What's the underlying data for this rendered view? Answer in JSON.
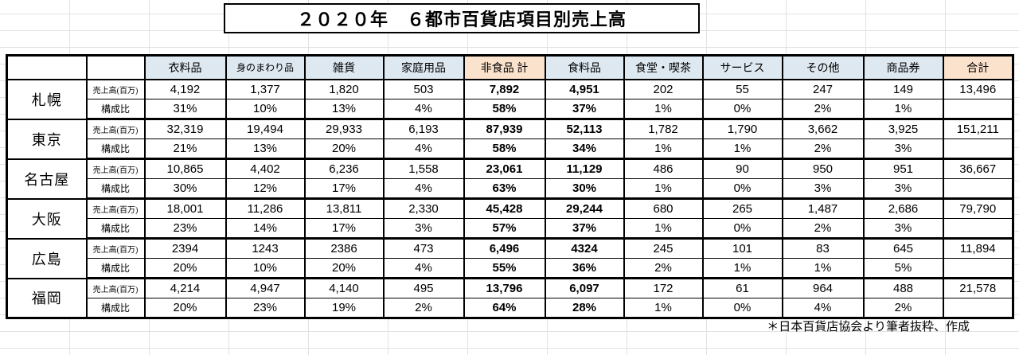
{
  "title": "２０２０年　６都市百貨店項目別売上高",
  "source_note": "＊日本百貨店協会より筆者抜粋、作成",
  "colors": {
    "header_blue": "#dde8f1",
    "header_peach": "#fbe2cd",
    "grid_line": "#e2e2e2",
    "table_border": "#000000"
  },
  "table": {
    "row_labels": {
      "sales": "売上高(百万)",
      "ratio": "構成比"
    },
    "columns": [
      "衣料品",
      "身のまわり品",
      "雑貨",
      "家庭用品",
      "非食品 計",
      "食料品",
      "食堂・喫茶",
      "サービス",
      "その他",
      "商品券",
      "合計"
    ],
    "cities": [
      {
        "name": "札幌",
        "sales": [
          "4,192",
          "1,377",
          "1,820",
          "503",
          "7,892",
          "4,951",
          "202",
          "55",
          "247",
          "149",
          "13,496"
        ],
        "ratio": [
          "31%",
          "10%",
          "13%",
          "4%",
          "58%",
          "37%",
          "1%",
          "0%",
          "2%",
          "1%",
          ""
        ]
      },
      {
        "name": "東京",
        "sales": [
          "32,319",
          "19,494",
          "29,933",
          "6,193",
          "87,939",
          "52,113",
          "1,782",
          "1,790",
          "3,662",
          "3,925",
          "151,211"
        ],
        "ratio": [
          "21%",
          "13%",
          "20%",
          "4%",
          "58%",
          "34%",
          "1%",
          "1%",
          "2%",
          "3%",
          ""
        ]
      },
      {
        "name": "名古屋",
        "sales": [
          "10,865",
          "4,402",
          "6,236",
          "1,558",
          "23,061",
          "11,129",
          "486",
          "90",
          "950",
          "951",
          "36,667"
        ],
        "ratio": [
          "30%",
          "12%",
          "17%",
          "4%",
          "63%",
          "30%",
          "1%",
          "0%",
          "3%",
          "3%",
          ""
        ]
      },
      {
        "name": "大阪",
        "sales": [
          "18,001",
          "11,286",
          "13,811",
          "2,330",
          "45,428",
          "29,244",
          "680",
          "265",
          "1,487",
          "2,686",
          "79,790"
        ],
        "ratio": [
          "23%",
          "14%",
          "17%",
          "3%",
          "57%",
          "37%",
          "1%",
          "0%",
          "2%",
          "3%",
          ""
        ]
      },
      {
        "name": "広島",
        "sales": [
          "2394",
          "1243",
          "2386",
          "473",
          "6,496",
          "4324",
          "245",
          "101",
          "83",
          "645",
          "11,894"
        ],
        "ratio": [
          "20%",
          "10%",
          "20%",
          "4%",
          "55%",
          "36%",
          "2%",
          "1%",
          "1%",
          "5%",
          ""
        ]
      },
      {
        "name": "福岡",
        "sales": [
          "4,214",
          "4,947",
          "4,140",
          "495",
          "13,796",
          "6,097",
          "172",
          "61",
          "964",
          "488",
          "21,578"
        ],
        "ratio": [
          "20%",
          "23%",
          "19%",
          "2%",
          "64%",
          "28%",
          "1%",
          "0%",
          "4%",
          "2%",
          ""
        ]
      }
    ]
  }
}
